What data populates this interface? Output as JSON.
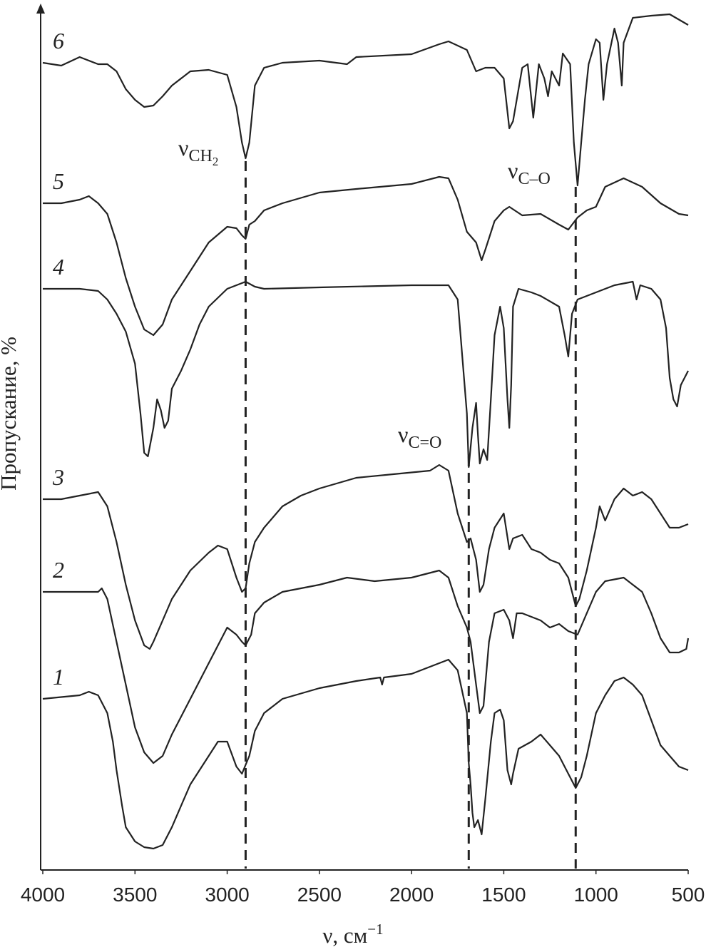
{
  "chart_data": {
    "type": "line",
    "xlabel": {
      "text": "ν, см",
      "superscript": "−1"
    },
    "ylabel": "Пропускание, %",
    "xlim": [
      4000,
      500
    ],
    "xticks": [
      4000,
      3500,
      3000,
      2500,
      2000,
      1500,
      1000,
      500
    ],
    "ylim": [
      0,
      1215
    ],
    "color": "#222222",
    "series": [
      {
        "name": "6",
        "x": [
          4000,
          3900,
          3800,
          3700,
          3650,
          3600,
          3550,
          3500,
          3450,
          3400,
          3350,
          3300,
          3200,
          3100,
          3000,
          2950,
          2920,
          2900,
          2880,
          2850,
          2800,
          2700,
          2500,
          2350,
          2300,
          2000,
          1850,
          1800,
          1700,
          1650,
          1600,
          1550,
          1500,
          1470,
          1450,
          1400,
          1370,
          1340,
          1310,
          1280,
          1260,
          1240,
          1200,
          1180,
          1140,
          1120,
          1100,
          1080,
          1060,
          1040,
          1000,
          980,
          960,
          940,
          900,
          880,
          860,
          850,
          800,
          700,
          600,
          500
        ],
        "values": [
          1132,
          1128,
          1140,
          1130,
          1130,
          1120,
          1095,
          1080,
          1070,
          1072,
          1085,
          1100,
          1120,
          1122,
          1115,
          1070,
          1020,
          998,
          1020,
          1100,
          1125,
          1132,
          1135,
          1130,
          1140,
          1144,
          1158,
          1162,
          1150,
          1120,
          1125,
          1125,
          1110,
          1040,
          1050,
          1125,
          1130,
          1055,
          1130,
          1110,
          1085,
          1120,
          1100,
          1145,
          1130,
          1020,
          960,
          1020,
          1080,
          1130,
          1165,
          1160,
          1080,
          1130,
          1180,
          1160,
          1100,
          1160,
          1195,
          1198,
          1200,
          1185
        ]
      },
      {
        "name": "5",
        "x": [
          4000,
          3900,
          3800,
          3750,
          3700,
          3650,
          3600,
          3550,
          3500,
          3450,
          3400,
          3350,
          3300,
          3200,
          3100,
          3000,
          2950,
          2920,
          2900,
          2880,
          2850,
          2800,
          2700,
          2500,
          2300,
          2000,
          1850,
          1800,
          1750,
          1700,
          1650,
          1620,
          1600,
          1550,
          1500,
          1470,
          1400,
          1300,
          1200,
          1150,
          1100,
          1050,
          1000,
          950,
          850,
          750,
          650,
          550,
          500
        ],
        "values": [
          935,
          935,
          940,
          945,
          935,
          920,
          880,
          830,
          790,
          758,
          750,
          765,
          800,
          840,
          880,
          902,
          900,
          890,
          885,
          905,
          910,
          925,
          935,
          950,
          955,
          962,
          972,
          970,
          940,
          895,
          880,
          855,
          870,
          910,
          925,
          930,
          918,
          920,
          905,
          898,
          915,
          925,
          930,
          958,
          970,
          958,
          935,
          920,
          918
        ]
      },
      {
        "name": "4",
        "x": [
          4000,
          3800,
          3700,
          3650,
          3600,
          3550,
          3500,
          3470,
          3450,
          3430,
          3400,
          3380,
          3360,
          3340,
          3320,
          3300,
          3250,
          3200,
          3150,
          3100,
          3000,
          2900,
          2850,
          2800,
          2500,
          2000,
          1800,
          1750,
          1700,
          1690,
          1670,
          1650,
          1640,
          1630,
          1610,
          1590,
          1570,
          1550,
          1520,
          1500,
          1480,
          1470,
          1460,
          1450,
          1420,
          1350,
          1300,
          1200,
          1170,
          1150,
          1130,
          1100,
          1000,
          900,
          800,
          780,
          760,
          700,
          650,
          620,
          600,
          580,
          560,
          540,
          500
        ],
        "values": [
          815,
          815,
          812,
          800,
          780,
          755,
          710,
          640,
          585,
          580,
          620,
          660,
          645,
          620,
          630,
          675,
          700,
          730,
          765,
          790,
          815,
          825,
          818,
          815,
          817,
          820,
          820,
          800,
          640,
          565,
          620,
          655,
          610,
          570,
          590,
          575,
          660,
          750,
          790,
          760,
          660,
          620,
          680,
          790,
          815,
          810,
          805,
          790,
          750,
          720,
          780,
          800,
          810,
          820,
          825,
          800,
          820,
          815,
          800,
          760,
          690,
          660,
          650,
          680,
          700
        ]
      },
      {
        "name": "3",
        "x": [
          4000,
          3900,
          3800,
          3700,
          3650,
          3600,
          3550,
          3500,
          3450,
          3420,
          3400,
          3350,
          3300,
          3200,
          3100,
          3050,
          3000,
          2950,
          2920,
          2900,
          2880,
          2850,
          2800,
          2700,
          2600,
          2500,
          2300,
          2100,
          1900,
          1850,
          1800,
          1750,
          1700,
          1680,
          1650,
          1630,
          1610,
          1580,
          1550,
          1500,
          1470,
          1450,
          1400,
          1350,
          1300,
          1250,
          1200,
          1150,
          1110,
          1090,
          1050,
          1000,
          980,
          950,
          900,
          850,
          800,
          750,
          700,
          600,
          550,
          500
        ],
        "values": [
          520,
          520,
          525,
          530,
          510,
          460,
          400,
          350,
          315,
          310,
          320,
          350,
          380,
          420,
          445,
          455,
          450,
          410,
          390,
          395,
          430,
          460,
          480,
          510,
          525,
          535,
          550,
          555,
          560,
          568,
          560,
          500,
          460,
          465,
          435,
          390,
          400,
          450,
          480,
          500,
          450,
          465,
          470,
          450,
          445,
          435,
          430,
          410,
          370,
          380,
          420,
          480,
          510,
          490,
          520,
          535,
          525,
          530,
          520,
          480,
          480,
          485
        ]
      },
      {
        "name": "2",
        "x": [
          4000,
          3700,
          3680,
          3650,
          3600,
          3550,
          3500,
          3450,
          3400,
          3350,
          3300,
          3200,
          3100,
          3000,
          2950,
          2920,
          2900,
          2870,
          2850,
          2800,
          2700,
          2500,
          2350,
          2200,
          2000,
          1850,
          1800,
          1750,
          1700,
          1680,
          1650,
          1630,
          1610,
          1580,
          1550,
          1500,
          1470,
          1450,
          1430,
          1400,
          1300,
          1250,
          1200,
          1150,
          1100,
          1050,
          1000,
          950,
          850,
          750,
          700,
          650,
          600,
          550,
          510,
          500
        ],
        "values": [
          390,
          390,
          395,
          380,
          320,
          260,
          200,
          165,
          150,
          160,
          190,
          240,
          290,
          340,
          330,
          320,
          315,
          330,
          360,
          375,
          390,
          400,
          410,
          405,
          410,
          420,
          410,
          370,
          340,
          320,
          260,
          220,
          230,
          320,
          360,
          365,
          350,
          325,
          360,
          360,
          350,
          340,
          345,
          335,
          330,
          360,
          390,
          405,
          410,
          390,
          360,
          325,
          305,
          305,
          310,
          325
        ]
      },
      {
        "name": "1",
        "x": [
          4000,
          3800,
          3750,
          3700,
          3650,
          3620,
          3600,
          3570,
          3550,
          3500,
          3450,
          3400,
          3350,
          3300,
          3250,
          3200,
          3100,
          3050,
          3000,
          2950,
          2920,
          2880,
          2850,
          2800,
          2700,
          2500,
          2300,
          2170,
          2160,
          2150,
          2000,
          1850,
          1800,
          1750,
          1700,
          1690,
          1680,
          1670,
          1660,
          1640,
          1620,
          1600,
          1570,
          1550,
          1520,
          1500,
          1480,
          1460,
          1450,
          1420,
          1350,
          1300,
          1250,
          1200,
          1150,
          1110,
          1080,
          1050,
          1000,
          950,
          900,
          850,
          800,
          750,
          700,
          650,
          600,
          550,
          500
        ],
        "values": [
          240,
          245,
          250,
          245,
          220,
          180,
          140,
          90,
          60,
          40,
          32,
          30,
          35,
          60,
          90,
          120,
          160,
          180,
          180,
          145,
          135,
          160,
          195,
          220,
          240,
          255,
          265,
          270,
          260,
          270,
          275,
          290,
          295,
          280,
          220,
          150,
          120,
          80,
          60,
          70,
          50,
          100,
          180,
          220,
          225,
          210,
          140,
          120,
          135,
          170,
          180,
          190,
          175,
          160,
          135,
          115,
          130,
          160,
          220,
          245,
          265,
          270,
          260,
          245,
          210,
          175,
          160,
          145,
          140
        ]
      }
    ],
    "annotations": [
      {
        "symbol": "ν",
        "subscript": "CH",
        "sub_subscript": "2",
        "x": 2900
      },
      {
        "symbol": "ν",
        "subscript": "C=O",
        "x": 1690
      },
      {
        "symbol": "ν",
        "subscript": "C–O",
        "x": 1110
      }
    ]
  }
}
